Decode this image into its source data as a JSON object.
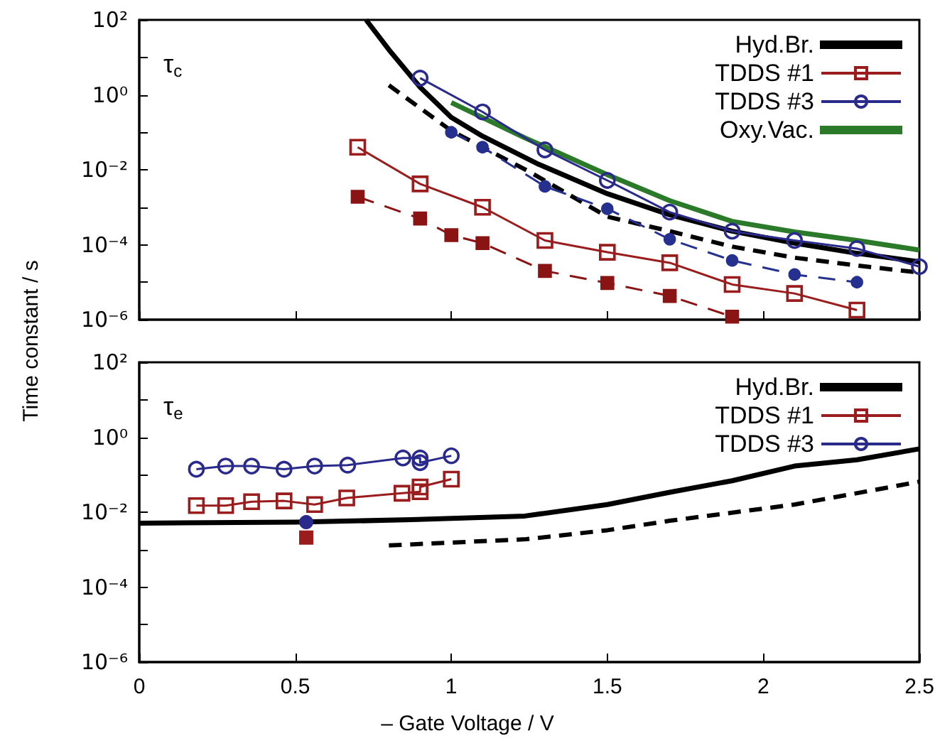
{
  "chart_data": [
    {
      "type": "line",
      "ylabel": "Time constant / s",
      "annotations": [
        "τ$_{c}$"
      ],
      "log": "y",
      "legend": "top right",
      "tick_labels": "y",
      "grid": false,
      "xlim": [
        0,
        2.5
      ],
      "xticks": [
        0,
        0.5,
        1,
        1.5,
        2,
        2.5
      ],
      "ylim": [
        1e-06,
        100
      ],
      "yticks": [
        {
          "value": 1e-06,
          "label": "10⁻⁶"
        },
        {
          "value": 1e-05,
          "label": null
        },
        {
          "value": 0.0001,
          "label": "10⁻⁴"
        },
        {
          "value": 0.001,
          "label": null
        },
        {
          "value": 0.01,
          "label": "10⁻²"
        },
        {
          "value": 0.1,
          "label": null
        },
        {
          "value": 1,
          "label": "10⁰"
        },
        {
          "value": 10,
          "label": null
        },
        {
          "value": 100,
          "label": "10²"
        }
      ],
      "series": [
        {
          "name": "Hyd.Br.",
          "color": "#000000",
          "marker": "none",
          "line_style": "solid",
          "x": [
            0.727,
            0.8,
            0.9,
            1.0,
            1.1,
            1.28,
            1.5,
            1.7,
            1.9,
            2.1,
            2.3,
            2.5
          ],
          "values": [
            100,
            16,
            1.6,
            0.25,
            0.079,
            0.014,
            0.0023,
            0.00063,
            0.00023,
            0.00011,
            5.9e-05,
            3.5e-05
          ]
        },
        {
          "name": "TDDS #1",
          "color": "#9b1c1c",
          "marker": "square",
          "line_style": "solid",
          "x": [
            0.7,
            0.9,
            1.1,
            1.3,
            1.5,
            1.7,
            1.9,
            2.1,
            2.3
          ],
          "values": [
            0.04,
            0.0042,
            0.001,
            0.00013,
            6.3e-05,
            3.3e-05,
            8.7e-06,
            5e-06,
            1.8e-06
          ]
        },
        {
          "name": "TDDS #3",
          "color": "#2a2a8c",
          "marker": "circle",
          "line_style": "solid",
          "x": [
            0.9,
            1.1,
            1.3,
            1.5,
            1.7,
            1.9,
            2.1,
            2.3,
            2.5
          ],
          "values": [
            2.8,
            0.35,
            0.034,
            0.0052,
            0.00074,
            0.00023,
            0.00013,
            7.9e-05,
            2.6e-05
          ]
        },
        {
          "name": "Oxy.Vac.",
          "color": "#2a7a2a",
          "marker": "none",
          "line_style": "solid",
          "x": [
            1.0,
            1.236,
            1.5,
            1.7,
            1.9,
            2.1,
            2.3,
            2.5
          ],
          "values": [
            0.62,
            0.071,
            0.0074,
            0.0015,
            0.00042,
            0.00022,
            0.00013,
            7.2e-05
          ]
        },
        {
          "color": "#000000",
          "marker": "none",
          "line_style": "dashed",
          "x": [
            0.8,
            1.0,
            1.25,
            1.5,
            1.7,
            1.9,
            2.1,
            2.3,
            2.5
          ],
          "values": [
            1.8,
            0.11,
            0.0089,
            0.00056,
            0.00023,
            8.9e-05,
            4.5e-05,
            2.8e-05,
            1.8e-05
          ]
        },
        {
          "color": "#8a1414",
          "marker": "square",
          "line_style": "dashed",
          "x": [
            0.7,
            0.9,
            1.0,
            1.1,
            1.3,
            1.5,
            1.7,
            1.9
          ],
          "values": [
            0.0019,
            0.0005,
            0.00018,
            0.00011,
            2e-05,
            9.5e-06,
            4.3e-06,
            1.2e-06
          ]
        },
        {
          "color": "#25308f",
          "marker": "circle",
          "line_style": "dashed",
          "x": [
            1.0,
            1.1,
            1.3,
            1.5,
            1.7,
            1.9,
            2.1,
            2.3
          ],
          "values": [
            0.1,
            0.04,
            0.0036,
            0.00091,
            0.00014,
            3.8e-05,
            1.6e-05,
            1e-05
          ]
        }
      ]
    },
    {
      "type": "line",
      "xlabel": "– Gate Voltage / V",
      "annotations": [
        "τ$_{e}$"
      ],
      "log": "y",
      "legend": "top right",
      "grid": false,
      "xlim": [
        0,
        2.5
      ],
      "xticks": [
        0,
        0.5,
        1,
        1.5,
        2,
        2.5
      ],
      "ylim": [
        1e-06,
        100
      ],
      "yticks": [
        {
          "value": 1e-06,
          "label": "10⁻⁶"
        },
        {
          "value": 1e-05,
          "label": null
        },
        {
          "value": 0.0001,
          "label": "10⁻⁴"
        },
        {
          "value": 0.001,
          "label": null
        },
        {
          "value": 0.01,
          "label": "10⁻²"
        },
        {
          "value": 0.1,
          "label": null
        },
        {
          "value": 1,
          "label": "10⁰"
        },
        {
          "value": 10,
          "label": null
        },
        {
          "value": 100,
          "label": "10²"
        }
      ],
      "series": [
        {
          "name": "Hyd.Br.",
          "color": "#000000",
          "marker": "none",
          "line_style": "solid",
          "x": [
            0,
            0.5,
            0.873,
            1.236,
            1.5,
            1.7,
            1.9,
            2.1,
            2.3,
            2.5
          ],
          "values": [
            0.0051,
            0.0054,
            0.0063,
            0.0079,
            0.016,
            0.034,
            0.069,
            0.17,
            0.25,
            0.49
          ]
        },
        {
          "name": "TDDS #1",
          "color": "#9b1c1c",
          "marker": "square",
          "line_style": "solid",
          "x": [
            0.183,
            0.277,
            0.36,
            0.464,
            0.562,
            0.665,
            0.842,
            0.9,
            0.9,
            1.0
          ],
          "values": [
            0.015,
            0.015,
            0.019,
            0.02,
            0.016,
            0.024,
            0.032,
            0.035,
            0.047,
            0.076
          ]
        },
        {
          "name": "TDDS #3",
          "color": "#2a2a8c",
          "marker": "circle",
          "line_style": "solid",
          "x": [
            0.183,
            0.277,
            0.36,
            0.464,
            0.562,
            0.668,
            0.845,
            0.9,
            0.9,
            1.0
          ],
          "values": [
            0.14,
            0.17,
            0.17,
            0.14,
            0.17,
            0.18,
            0.28,
            0.28,
            0.21,
            0.32
          ]
        },
        {
          "color": "#000000",
          "marker": "none",
          "line_style": "dashed",
          "x": [
            0.8,
            1.24,
            1.5,
            1.7,
            2.1,
            2.5
          ],
          "values": [
            0.0013,
            0.0019,
            0.0033,
            0.0059,
            0.016,
            0.065
          ]
        },
        {
          "type": "scatter",
          "color": "#9b1c1c",
          "marker": "square",
          "x": [
            0.535
          ],
          "values": [
            0.0021
          ]
        },
        {
          "type": "scatter",
          "color": "#2a2a8c",
          "marker": "circle",
          "x": [
            0.535
          ],
          "values": [
            0.0054
          ]
        }
      ]
    }
  ]
}
